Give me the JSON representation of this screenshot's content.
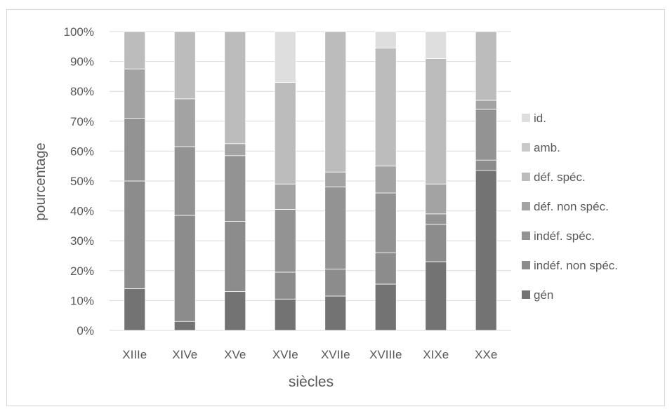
{
  "chart_data": {
    "type": "bar",
    "stacked": true,
    "percent": true,
    "xlabel": "siècles",
    "ylabel": "pourcentage",
    "categories": [
      "XIIIe",
      "XIVe",
      "XVe",
      "XVIe",
      "XVIIe",
      "XVIIIe",
      "XIXe",
      "XXe"
    ],
    "yticks": [
      "0%",
      "10%",
      "20%",
      "30%",
      "40%",
      "50%",
      "60%",
      "70%",
      "80%",
      "90%",
      "100%"
    ],
    "ylim": [
      0,
      100
    ],
    "grid": true,
    "legend_position": "right",
    "series": [
      {
        "name": "gén",
        "color": "#737373",
        "values": [
          14,
          3,
          13,
          10.5,
          11.5,
          15.5,
          23,
          53.5
        ]
      },
      {
        "name": "indéf. non spéc.",
        "color": "#8c8c8c",
        "values": [
          36,
          35.5,
          23.5,
          9,
          9,
          10.5,
          12.5,
          3.5
        ]
      },
      {
        "name": "indéf. spéc.",
        "color": "#939393",
        "values": [
          21,
          23,
          22,
          21,
          27.5,
          20,
          3.5,
          17
        ]
      },
      {
        "name": "déf. non spéc.",
        "color": "#a3a3a3",
        "values": [
          16.5,
          16,
          4,
          8.5,
          5,
          9,
          10,
          3
        ]
      },
      {
        "name": "déf. spéc.",
        "color": "#bcbcbc",
        "values": [
          12.5,
          22.5,
          37.5,
          34,
          47,
          39.5,
          42,
          23
        ]
      },
      {
        "name": "amb.",
        "color": "#c9c9c9",
        "values": [
          0,
          0,
          0,
          0,
          0,
          0,
          0,
          0
        ]
      },
      {
        "name": "id.",
        "color": "#dedede",
        "values": [
          0,
          0,
          0,
          17,
          0,
          5.5,
          9,
          0
        ]
      }
    ]
  }
}
